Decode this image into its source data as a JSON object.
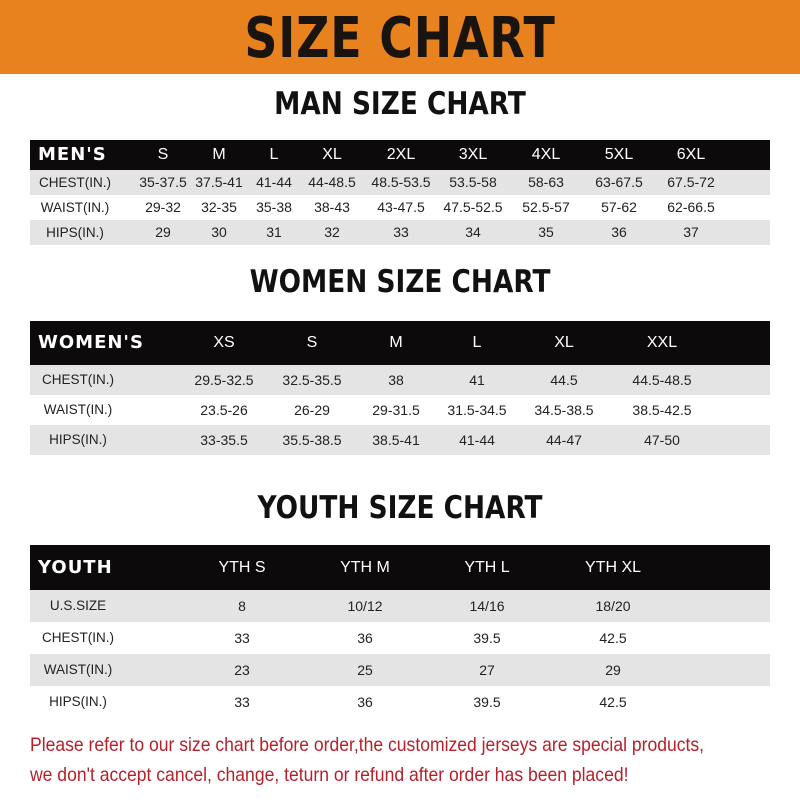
{
  "banner": {
    "title": "SIZE CHART",
    "color": "#e8821e"
  },
  "men": {
    "title": "MAN SIZE CHART",
    "header": [
      "MEN'S",
      "S",
      "M",
      "L",
      "XL",
      "2XL",
      "3XL",
      "4XL",
      "5XL",
      "6XL"
    ],
    "rows": [
      [
        "CHEST(IN.)",
        "35-37.5",
        "37.5-41",
        "41-44",
        "44-48.5",
        "48.5-53.5",
        "53.5-58",
        "58-63",
        "63-67.5",
        "67.5-72"
      ],
      [
        "WAIST(IN.)",
        "29-32",
        "32-35",
        "35-38",
        "38-43",
        "43-47.5",
        "47.5-52.5",
        "52.5-57",
        "57-62",
        "62-66.5"
      ],
      [
        "HIPS(IN.)",
        "29",
        "30",
        "31",
        "32",
        "33",
        "34",
        "35",
        "36",
        "37"
      ]
    ]
  },
  "women": {
    "title": "WOMEN SIZE CHART",
    "header": [
      "WOMEN'S",
      "XS",
      "S",
      "M",
      "L",
      "XL",
      "XXL"
    ],
    "rows": [
      [
        "CHEST(IN.)",
        "29.5-32.5",
        "32.5-35.5",
        "38",
        "41",
        "44.5",
        "44.5-48.5"
      ],
      [
        "WAIST(IN.)",
        "23.5-26",
        "26-29",
        "29-31.5",
        "31.5-34.5",
        "34.5-38.5",
        "38.5-42.5"
      ],
      [
        "HIPS(IN.)",
        "33-35.5",
        "35.5-38.5",
        "38.5-41",
        "41-44",
        "44-47",
        "47-50"
      ]
    ]
  },
  "youth": {
    "title": "YOUTH SIZE CHART",
    "header": [
      "YOUTH",
      "YTH S",
      "YTH M",
      "YTH L",
      "YTH XL"
    ],
    "rows": [
      [
        "U.S.SIZE",
        "8",
        "10/12",
        "14/16",
        "18/20"
      ],
      [
        "CHEST(IN.)",
        "33",
        "36",
        "39.5",
        "42.5"
      ],
      [
        "WAIST(IN.)",
        "23",
        "25",
        "27",
        "29"
      ],
      [
        "HIPS(IN.)",
        "33",
        "36",
        "39.5",
        "42.5"
      ]
    ]
  },
  "footer": {
    "line1": "Please refer to our size chart before order,the customized jerseys are special products,",
    "line2": "we don't accept cancel, change, teturn or refund after order has been placed!",
    "color": "#b5212a"
  }
}
